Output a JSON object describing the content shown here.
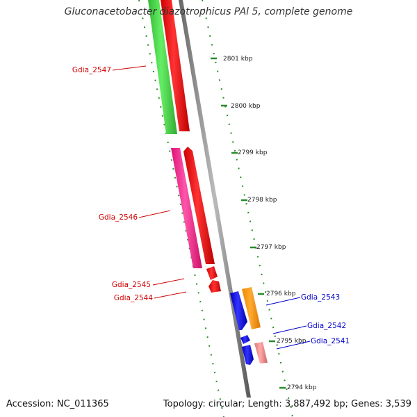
{
  "title": "Gluconacetobacter diazotrophicus PAl 5, complete genome",
  "footer": {
    "accession": "Accession: NC_011365",
    "topology": "Topology: circular; Length: 3,887,492 bp; Genes: 3,539"
  },
  "ticks": [
    "2801 kbp",
    "2800 kbp",
    "2799 kbp",
    "2798 kbp",
    "2797 kbp",
    "2796 kbp",
    "2795 kbp",
    "2794 kbp"
  ],
  "gene_labels": [
    {
      "text": "Gdia_2547",
      "color": "#d00000"
    },
    {
      "text": "Gdia_2546",
      "color": "#d00000"
    },
    {
      "text": "Gdia_2545",
      "color": "#d00000"
    },
    {
      "text": "Gdia_2544",
      "color": "#d00000"
    },
    {
      "text": "Gdia_2543",
      "color": "#0000cc"
    },
    {
      "text": "Gdia_2542",
      "color": "#0000cc"
    },
    {
      "text": "Gdia_2541",
      "color": "#0000cc"
    }
  ],
  "colors": {
    "green": "#44cc44",
    "red": "#ee1111",
    "pink": "#ff3399",
    "blue": "#1111ee",
    "orange": "#ff9911",
    "salmon": "#ee8888",
    "backbone": "#888888",
    "tick": "#2a8a2a"
  }
}
